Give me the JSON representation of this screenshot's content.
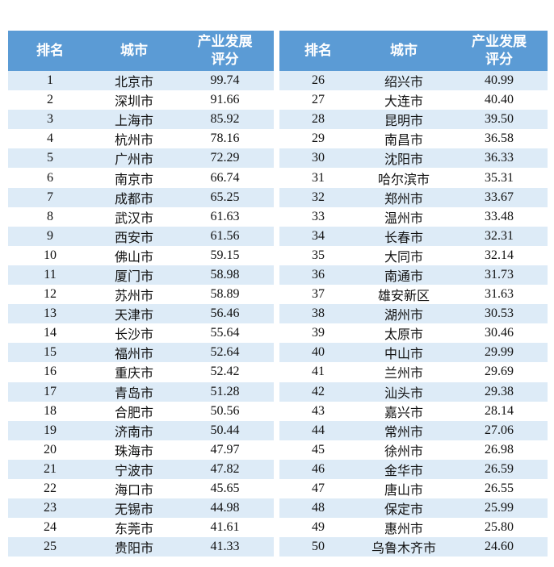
{
  "tables": [
    {
      "header": [
        "排名",
        "城市",
        "产业发展评分"
      ],
      "rows": [
        [
          1,
          "北京市",
          "99.74"
        ],
        [
          2,
          "深圳市",
          "91.66"
        ],
        [
          3,
          "上海市",
          "85.92"
        ],
        [
          4,
          "杭州市",
          "78.16"
        ],
        [
          5,
          "广州市",
          "72.29"
        ],
        [
          6,
          "南京市",
          "66.74"
        ],
        [
          7,
          "成都市",
          "65.25"
        ],
        [
          8,
          "武汉市",
          "61.63"
        ],
        [
          9,
          "西安市",
          "61.56"
        ],
        [
          10,
          "佛山市",
          "59.15"
        ],
        [
          11,
          "厦门市",
          "58.98"
        ],
        [
          12,
          "苏州市",
          "58.89"
        ],
        [
          13,
          "天津市",
          "56.46"
        ],
        [
          14,
          "长沙市",
          "55.64"
        ],
        [
          15,
          "福州市",
          "52.64"
        ],
        [
          16,
          "重庆市",
          "52.42"
        ],
        [
          17,
          "青岛市",
          "51.28"
        ],
        [
          18,
          "合肥市",
          "50.56"
        ],
        [
          19,
          "济南市",
          "50.44"
        ],
        [
          20,
          "珠海市",
          "47.97"
        ],
        [
          21,
          "宁波市",
          "47.82"
        ],
        [
          22,
          "海口市",
          "45.65"
        ],
        [
          23,
          "无锡市",
          "44.98"
        ],
        [
          24,
          "东莞市",
          "41.61"
        ],
        [
          25,
          "贵阳市",
          "41.33"
        ]
      ]
    },
    {
      "header": [
        "排名",
        "城市",
        "产业发展评分"
      ],
      "rows": [
        [
          26,
          "绍兴市",
          "40.99"
        ],
        [
          27,
          "大连市",
          "40.40"
        ],
        [
          28,
          "昆明市",
          "39.50"
        ],
        [
          29,
          "南昌市",
          "36.58"
        ],
        [
          30,
          "沈阳市",
          "36.33"
        ],
        [
          31,
          "哈尔滨市",
          "35.31"
        ],
        [
          32,
          "郑州市",
          "33.67"
        ],
        [
          33,
          "温州市",
          "33.48"
        ],
        [
          34,
          "长春市",
          "32.31"
        ],
        [
          35,
          "大同市",
          "32.14"
        ],
        [
          36,
          "南通市",
          "31.73"
        ],
        [
          37,
          "雄安新区",
          "31.63"
        ],
        [
          38,
          "湖州市",
          "30.53"
        ],
        [
          39,
          "太原市",
          "30.46"
        ],
        [
          40,
          "中山市",
          "29.99"
        ],
        [
          41,
          "兰州市",
          "29.69"
        ],
        [
          42,
          "汕头市",
          "29.38"
        ],
        [
          43,
          "嘉兴市",
          "28.14"
        ],
        [
          44,
          "常州市",
          "27.06"
        ],
        [
          45,
          "徐州市",
          "26.98"
        ],
        [
          46,
          "金华市",
          "26.59"
        ],
        [
          47,
          "唐山市",
          "26.55"
        ],
        [
          48,
          "保定市",
          "25.99"
        ],
        [
          49,
          "惠州市",
          "25.80"
        ],
        [
          50,
          "乌鲁木齐市",
          "24.60"
        ]
      ]
    }
  ]
}
